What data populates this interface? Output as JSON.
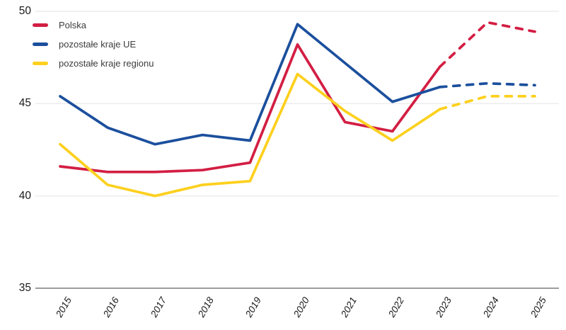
{
  "chart_data": {
    "type": "line",
    "title": "",
    "xlabel": "",
    "ylabel": "",
    "x": [
      "2015",
      "2016",
      "2017",
      "2018",
      "2019",
      "2020",
      "2021",
      "2022",
      "2023",
      "2024",
      "2025"
    ],
    "ylim": [
      35,
      50
    ],
    "yticks": [
      35,
      40,
      45,
      50
    ],
    "grid": "horizontal",
    "legend_position": "top-left",
    "forecast_dashed_from": "2023",
    "series": [
      {
        "name": "Polska",
        "color": "#d31e43",
        "values": [
          41.6,
          41.3,
          41.3,
          41.4,
          41.8,
          48.2,
          44.0,
          43.5,
          47.0,
          49.4,
          48.9
        ]
      },
      {
        "name": "pozostałe kraje UE",
        "color": "#1b4f9d",
        "values": [
          45.4,
          43.7,
          42.8,
          43.3,
          43.0,
          49.3,
          47.2,
          45.1,
          45.9,
          46.1,
          46.0
        ]
      },
      {
        "name": "pozostałe kraje regionu",
        "color": "#fdd01e",
        "values": [
          42.8,
          40.6,
          40.0,
          40.6,
          40.8,
          46.6,
          44.6,
          43.0,
          44.7,
          45.4,
          45.4
        ]
      }
    ],
    "colors": {
      "axis_line": "#9c9c9c",
      "gridline": "#ececec",
      "tick_label": "#1a1a1a",
      "legend_text": "#3d3d3d"
    }
  }
}
